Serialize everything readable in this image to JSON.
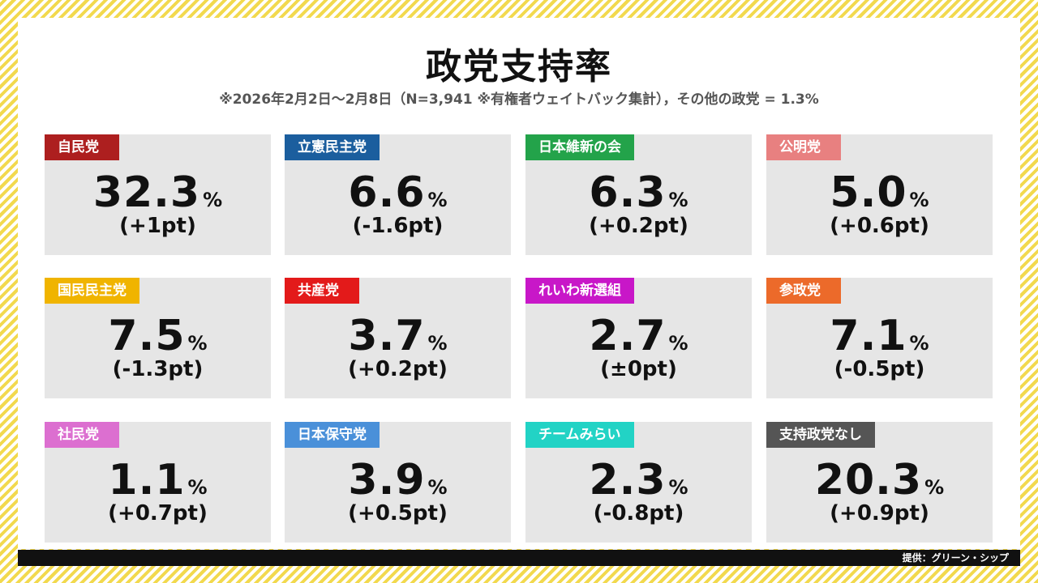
{
  "title": "政党支持率",
  "subtitle": "※2026年2月2日～2月8日（N=3,941 ※有権者ウェイトバック集計），その他の政党 = 1.3%",
  "footer": "提供：グリーン・シップ",
  "chart_data": {
    "type": "table",
    "title": "政党支持率",
    "unit": "%",
    "parties": [
      {
        "name": "自民党",
        "value": "32.3",
        "change": "(+1pt)",
        "color": "#ad1f1f"
      },
      {
        "name": "立憲民主党",
        "value": "6.6",
        "change": "(-1.6pt)",
        "color": "#1b5e9e"
      },
      {
        "name": "日本維新の会",
        "value": "6.3",
        "change": "(+0.2pt)",
        "color": "#23a34a"
      },
      {
        "name": "公明党",
        "value": "5.0",
        "change": "(+0.6pt)",
        "color": "#e88080"
      },
      {
        "name": "国民民主党",
        "value": "7.5",
        "change": "(-1.3pt)",
        "color": "#f0b400"
      },
      {
        "name": "共産党",
        "value": "3.7",
        "change": "(+0.2pt)",
        "color": "#e31a1a"
      },
      {
        "name": "れいわ新選組",
        "value": "2.7",
        "change": "(±0pt)",
        "color": "#c817c8"
      },
      {
        "name": "参政党",
        "value": "7.1",
        "change": "(-0.5pt)",
        "color": "#ec6a2a"
      },
      {
        "name": "社民党",
        "value": "1.1",
        "change": "(+0.7pt)",
        "color": "#dc6fd0"
      },
      {
        "name": "日本保守党",
        "value": "3.9",
        "change": "(+0.5pt)",
        "color": "#4a90d9"
      },
      {
        "name": "チームみらい",
        "value": "2.3",
        "change": "(-0.8pt)",
        "color": "#22d3c5"
      },
      {
        "name": "支持政党なし",
        "value": "20.3",
        "change": "(+0.9pt)",
        "color": "#555555"
      }
    ]
  }
}
